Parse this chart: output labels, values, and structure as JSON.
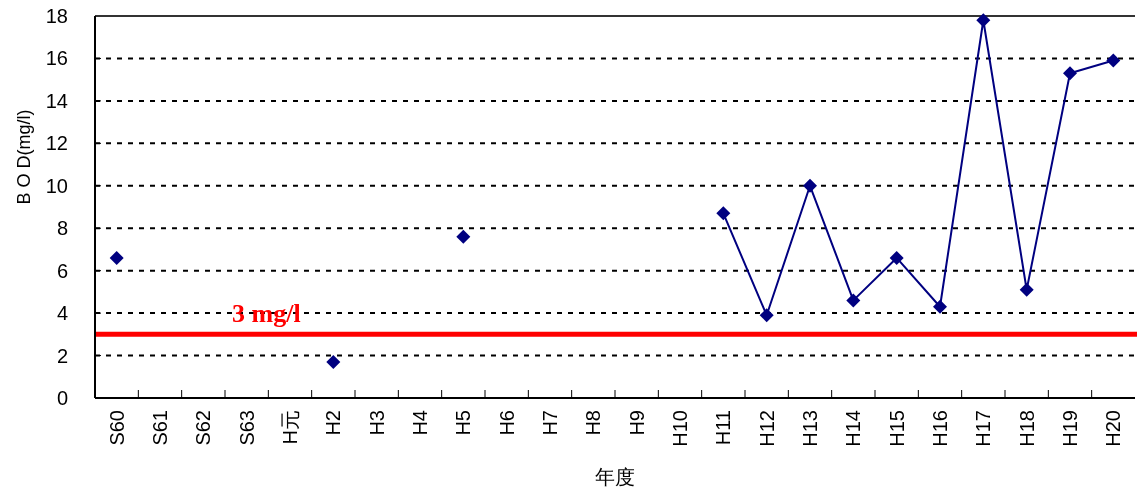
{
  "chart_data": {
    "type": "line",
    "xlabel": "年度",
    "ylabel": "B O D(mg/l)",
    "categories": [
      "S60",
      "S61",
      "S62",
      "S63",
      "H元",
      "H2",
      "H3",
      "H4",
      "H5",
      "H6",
      "H7",
      "H8",
      "H9",
      "H10",
      "H11",
      "H12",
      "H13",
      "H14",
      "H15",
      "H16",
      "H17",
      "H18",
      "H19",
      "H20"
    ],
    "series": [
      {
        "color": "#000080",
        "values": [
          6.6,
          null,
          null,
          null,
          null,
          1.7,
          null,
          null,
          7.6,
          null,
          null,
          null,
          null,
          null,
          8.7,
          3.9,
          10.0,
          4.6,
          6.6,
          4.3,
          17.8,
          5.1,
          15.3,
          15.9
        ]
      }
    ],
    "ylim": [
      0,
      18
    ],
    "yticks": [
      0,
      2,
      4,
      6,
      8,
      10,
      12,
      14,
      16,
      18
    ],
    "grid": "y",
    "marker": "diamond",
    "line_style": "solid",
    "ref_lines": [
      {
        "axis": "y",
        "value": 3,
        "label": "3 mg/l",
        "color": "#ff0000",
        "line_style": "solid"
      }
    ]
  }
}
